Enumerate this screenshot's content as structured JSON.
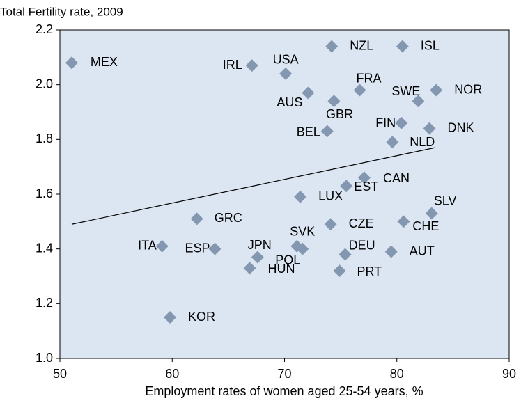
{
  "chart_data": {
    "type": "scatter",
    "title": "Total Fertility rate, 2009",
    "x_label": "Employment rates of women aged 25-54 years, %",
    "labels": [
      "MEX",
      "IRL",
      "USA",
      "NZL",
      "ISL",
      "AUS",
      "FRA",
      "GBR",
      "SWE",
      "NOR",
      "BEL",
      "FIN",
      "DNK",
      "NLD",
      "CAN",
      "EST",
      "LUX",
      "SLV",
      "GRC",
      "CZE",
      "CHE",
      "SVK",
      "ITA",
      "ESP",
      "JPN",
      "POL",
      "DEU",
      "AUT",
      "HUN",
      "PRT",
      "KOR"
    ],
    "x": [
      51.05,
      67.1,
      70.1,
      74.2,
      80.5,
      72.1,
      76.7,
      74.4,
      81.9,
      83.5,
      73.8,
      80.4,
      82.9,
      79.6,
      77.1,
      75.5,
      71.4,
      83.1,
      62.2,
      74.1,
      80.6,
      71.1,
      59.1,
      63.8,
      67.6,
      71.6,
      75.4,
      79.5,
      66.9,
      74.9,
      59.8
    ],
    "values": [
      2.08,
      2.07,
      2.04,
      2.14,
      2.14,
      1.97,
      1.98,
      1.94,
      1.94,
      1.98,
      1.83,
      1.86,
      1.84,
      1.79,
      1.66,
      1.63,
      1.59,
      1.53,
      1.51,
      1.49,
      1.5,
      1.41,
      1.41,
      1.4,
      1.37,
      1.4,
      1.38,
      1.39,
      1.33,
      1.32,
      1.15
    ],
    "color": "#8497b0",
    "trend_line": {
      "x": [
        51.05,
        83.4
      ],
      "y": [
        1.49,
        1.77
      ]
    },
    "xlim": [
      50,
      90
    ],
    "xticks": [
      50,
      60,
      70,
      80,
      90
    ],
    "ylim": [
      1.0,
      2.2
    ],
    "yticks": [
      {
        "value": 1.0,
        "label": "1.0"
      },
      1.2,
      1.4,
      1.6,
      1.8,
      {
        "value": 2.0,
        "label": "2.0"
      },
      2.2
    ]
  }
}
